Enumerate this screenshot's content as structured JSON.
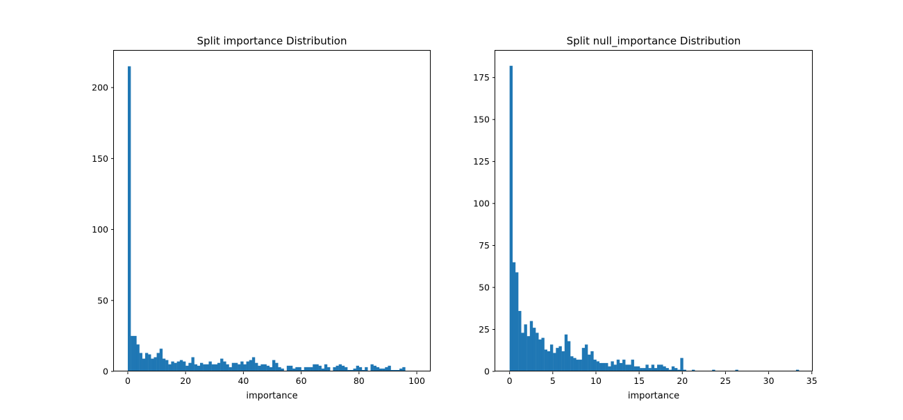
{
  "bar_color": "#1f77b4",
  "chart_data": [
    {
      "type": "bar",
      "title": "Split importance Distribution",
      "xlabel": "importance",
      "ylabel": "",
      "xlim": [
        -4.8,
        104.8
      ],
      "ylim": [
        0,
        226
      ],
      "xticks": [
        0,
        20,
        40,
        60,
        80,
        100
      ],
      "yticks": [
        0,
        50,
        100,
        150,
        200
      ],
      "bin_start": 0,
      "bin_width": 1,
      "values": [
        215,
        25,
        25,
        19,
        13,
        9,
        13,
        12,
        9,
        10,
        13,
        16,
        9,
        8,
        5,
        7,
        6,
        7,
        8,
        7,
        4,
        6,
        10,
        5,
        4,
        6,
        5,
        5,
        7,
        5,
        5,
        6,
        9,
        7,
        5,
        3,
        6,
        6,
        5,
        7,
        5,
        7,
        8,
        10,
        6,
        4,
        5,
        5,
        4,
        3,
        8,
        6,
        3,
        2,
        0,
        4,
        4,
        2,
        3,
        3,
        1,
        3,
        3,
        3,
        5,
        5,
        4,
        2,
        5,
        3,
        0,
        3,
        4,
        5,
        4,
        3,
        1,
        1,
        2,
        4,
        3,
        1,
        3,
        0,
        5,
        4,
        3,
        2,
        2,
        3,
        4,
        1,
        1,
        1,
        2,
        3,
        0,
        0,
        0,
        0
      ],
      "grid": false,
      "legend": "none"
    },
    {
      "type": "bar",
      "title": "Split null_importance Distribution",
      "xlabel": "importance",
      "ylabel": "",
      "xlim": [
        -1.66,
        35.1
      ],
      "ylim": [
        0,
        191
      ],
      "xticks": [
        0,
        5,
        10,
        15,
        20,
        25,
        30,
        35
      ],
      "yticks": [
        0,
        25,
        50,
        75,
        100,
        125,
        150,
        175
      ],
      "bin_start": 0,
      "bin_width": 0.335,
      "values": [
        182,
        65,
        59,
        36,
        23,
        28,
        21,
        30,
        26,
        23,
        19,
        20,
        13,
        12,
        16,
        11,
        14,
        15,
        12,
        22,
        18,
        9,
        8,
        7,
        7,
        14,
        16,
        10,
        12,
        7,
        6,
        5,
        5,
        5,
        3,
        6,
        4,
        7,
        5,
        7,
        4,
        4,
        7,
        3,
        3,
        2,
        2,
        4,
        2,
        4,
        2,
        4,
        4,
        3,
        2,
        1,
        3,
        2,
        1,
        8,
        1,
        0,
        0,
        1,
        0,
        0,
        0,
        0,
        0,
        0,
        1,
        0,
        0,
        0,
        0,
        0,
        0,
        0,
        1,
        0,
        0,
        0,
        0,
        0,
        0,
        0,
        0,
        0,
        0,
        0,
        0,
        0,
        0,
        0,
        0,
        0,
        0,
        0,
        0,
        1
      ],
      "grid": false,
      "legend": "none"
    }
  ]
}
